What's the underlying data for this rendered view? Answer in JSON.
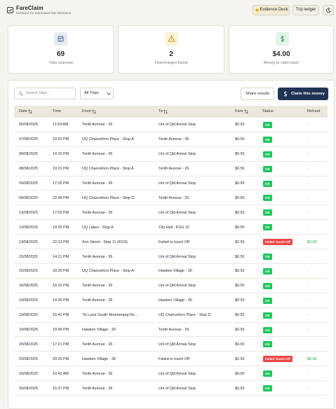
{
  "header": {
    "title": "FareClaim",
    "subtitle": "Evidence for automated fare decisions.",
    "buttons": [
      "Evidence Desk",
      "Trip ledger"
    ]
  },
  "stats": [
    {
      "value": "69",
      "label": "Trips scanned"
    },
    {
      "value": "2",
      "label": "Overcharges found"
    },
    {
      "value": "$4.00",
      "label": "Money to claim back"
    }
  ],
  "toolbar": {
    "search_placeholder": "Search trips...",
    "filter": "All Trips",
    "share": "Share results",
    "claim": "Claim this money"
  },
  "table": {
    "columns": [
      "Date",
      "Time",
      "From",
      "To",
      "Fare",
      "Status",
      "Refund"
    ],
    "rows": [
      {
        "cells": [
          "06/08/2025",
          "11:54 AM",
          "Tenth Avenue - 26",
          "Uni of Qld Arrival Stop",
          "$0.50",
          "OK",
          "-"
        ],
        "status_color": "#22c55e",
        "refund_color": "#888888"
      },
      {
        "cells": [
          "07/08/2025",
          "19:52 PM",
          "UQ Chancellors Place - Stop A",
          "Tenth Avenue - 26",
          "$0.50",
          "OK",
          "-"
        ],
        "status_color": "#22c55e",
        "refund_color": "#888888"
      },
      {
        "cells": [
          "08/08/2025",
          "14:10 PM",
          "Tenth Avenue - 26",
          "Uni of Qld Arrival Stop",
          "$0.50",
          "OK",
          "-"
        ],
        "status_color": "#22c55e",
        "refund_color": "#888888"
      },
      {
        "cells": [
          "08/08/2025",
          "19:21 PM",
          "UQ Chancellors Place - Stop A",
          "Tenth Avenue - 26",
          "$0.50",
          "OK",
          "-"
        ],
        "status_color": "#22c55e",
        "refund_color": "#888888"
      },
      {
        "cells": [
          "09/08/2025",
          "17:35 PM",
          "Tenth Avenue - 26",
          "Uni of Qld Arrival Stop",
          "$0.50",
          "OK",
          "-"
        ],
        "status_color": "#22c55e",
        "refund_color": "#888888"
      },
      {
        "cells": [
          "09/08/2025",
          "22:38 PM",
          "UQ Chancellors Place - Stop C",
          "Tenth Avenue - 26",
          "$0.50",
          "OK",
          "-"
        ],
        "status_color": "#22c55e",
        "refund_color": "#888888"
      },
      {
        "cells": [
          "13/08/2025",
          "17:55 PM",
          "Tenth Avenue - 26",
          "Uni of Qld Arrival Stop",
          "$0.50",
          "OK",
          "-"
        ],
        "status_color": "#22c55e",
        "refund_color": "#888888"
      },
      {
        "cells": [
          "13/08/2025",
          "19:25 PM",
          "UQ Lakes - Stop A",
          "City Hall - KGS 1C",
          "$0.50",
          "OK",
          "-"
        ],
        "status_color": "#22c55e",
        "refund_color": "#888888"
      },
      {
        "cells": [
          "13/08/2025",
          "22:13 PM",
          "Ann Street - Stop 11 (KGS)",
          "Failed to touch Off",
          "$2.50",
          "Failed Touch Off",
          "$2.00"
        ],
        "status_color": "#ef4444",
        "refund_color": "#16a34a"
      },
      {
        "cells": [
          "15/08/2025",
          "14:21 PM",
          "Tenth Avenue - 26",
          "Uni of Qld Arrival Stop",
          "$0.50",
          "OK",
          "-"
        ],
        "status_color": "#22c55e",
        "refund_color": "#888888"
      },
      {
        "cells": [
          "15/08/2025",
          "20:26 PM",
          "UQ Chancellors Place - Stop A",
          "Hawken Village - 30",
          "$0.50",
          "OK",
          "-"
        ],
        "status_color": "#22c55e",
        "refund_color": "#888888"
      },
      {
        "cells": [
          "16/08/2025",
          "16:15 PM",
          "Tenth Avenue - 26",
          "Uni of Qld Arrival Stop",
          "$0.50",
          "OK",
          "-"
        ],
        "status_color": "#22c55e",
        "refund_color": "#888888"
      },
      {
        "cells": [
          "19/08/2025",
          "14:39 PM",
          "Tenth Avenue - 26",
          "Hawken Village - 30",
          "$0.50",
          "OK",
          "-"
        ],
        "status_color": "#22c55e",
        "refund_color": "#888888"
      },
      {
        "cells": [
          "19/08/2025",
          "15:42 PM",
          "'St Lucia South' Boomerang Ro...",
          "UQ Chancellors Place - Stop D",
          "$0.50",
          "OK",
          "-"
        ],
        "status_color": "#22c55e",
        "refund_color": "#888888"
      },
      {
        "cells": [
          "19/08/2025",
          "19:46 PM",
          "Hawken Village - 30",
          "Tenth Avenue - 26",
          "$0.50",
          "OK",
          "-"
        ],
        "status_color": "#22c55e",
        "refund_color": "#888888"
      },
      {
        "cells": [
          "20/08/2025",
          "17:21 PM",
          "Tenth Avenue - 26",
          "Uni of Qld Arrival Stop",
          "$0.50",
          "OK",
          "-"
        ],
        "status_color": "#22c55e",
        "refund_color": "#888888"
      },
      {
        "cells": [
          "20/08/2025",
          "20:29 PM",
          "Hawken Village - 30",
          "Failed to touch Off",
          "$2.50",
          "Failed Touch Off",
          "$2.00"
        ],
        "status_color": "#ef4444",
        "refund_color": "#16a34a"
      },
      {
        "cells": [
          "20/08/2025",
          "10:41 AM",
          "Tenth Avenue - 26",
          "Uni of Qld Arrival Stop",
          "$0.50",
          "OK",
          "-"
        ],
        "status_color": "#22c55e",
        "refund_color": "#888888"
      },
      {
        "cells": [
          "26/08/2025",
          "15:37 PM",
          "Tenth Avenue - 26",
          "Uni of Qld Arrival Stop",
          "$0.50",
          "OK",
          "-"
        ],
        "status_color": "#22c55e",
        "refund_color": "#888888"
      }
    ]
  }
}
